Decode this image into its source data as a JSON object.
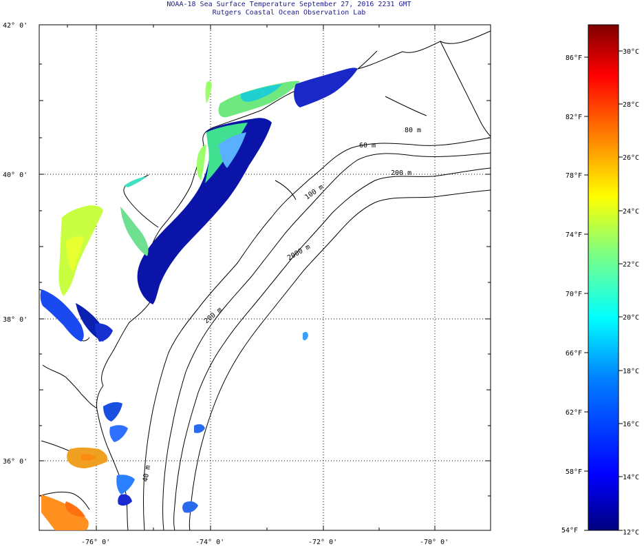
{
  "title": "NOAA-18 Sea Surface Temperature September 27, 2016 2231 GMT",
  "subtitle": "Rutgers Coastal Ocean Observation Lab",
  "map": {
    "lat_labels": [
      "42° 0'",
      "40° 0'",
      "38° 0'",
      "36° 0'"
    ],
    "lon_labels": [
      "-76° 0'",
      "-74° 0'",
      "-72° 0'",
      "-70° 0'"
    ],
    "contour_labels": [
      "60 m",
      "80 m",
      "200 m",
      "100 m",
      "2000 m",
      "200 m",
      "40 m"
    ]
  },
  "colorbar": {
    "fahrenheit": [
      "86°F",
      "82°F",
      "78°F",
      "74°F",
      "70°F",
      "66°F",
      "62°F",
      "58°F",
      "54°F"
    ],
    "celsius": [
      "30°C",
      "28°C",
      "26°C",
      "24°C",
      "22°C",
      "20°C",
      "18°C",
      "16°C",
      "14°C",
      "12°C"
    ],
    "stops": [
      "#00007f",
      "#0000ff",
      "#007fff",
      "#00ffff",
      "#7fff7f",
      "#ffff00",
      "#ff7f00",
      "#ff0000",
      "#7f0000"
    ]
  }
}
